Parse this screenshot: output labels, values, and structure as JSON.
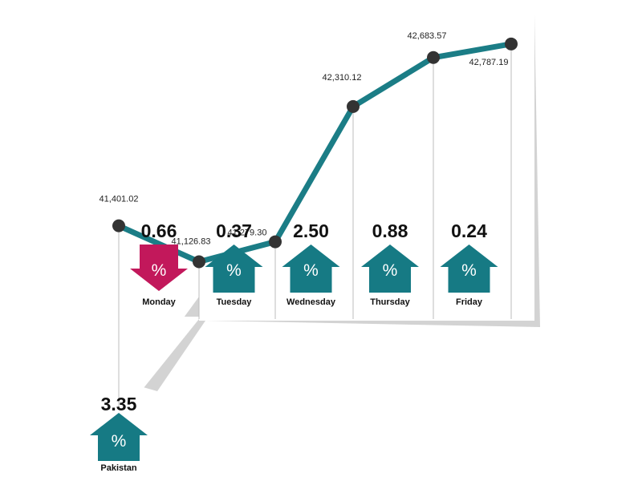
{
  "colors": {
    "line": "#1b7d86",
    "up": "#167a84",
    "down": "#c2185b",
    "point": "#333333",
    "panel_shadow": "#cfcfcf",
    "divider": "#bdbdbd"
  },
  "chart_data": {
    "type": "line",
    "title": "",
    "xlabel": "",
    "ylabel": "",
    "categories": [
      "Monday",
      "Tuesday",
      "Wednesday",
      "Thursday",
      "Friday"
    ],
    "ylim": [
      40800,
      43000
    ],
    "points": [
      {
        "label": "41,401.02",
        "value": 41401.02
      },
      {
        "label": "41,126.83",
        "value": 41126.83
      },
      {
        "label": "41,279.30",
        "value": 41279.3
      },
      {
        "label": "42,310.12",
        "value": 42310.12
      },
      {
        "label": "42,683.57",
        "value": 42683.57
      },
      {
        "label": "42,787.19",
        "value": 42787.19
      }
    ],
    "daily_changes": [
      {
        "day": "Monday",
        "percent": "0.66",
        "direction": "down",
        "icon": "percent-arrow-down-icon"
      },
      {
        "day": "Tuesday",
        "percent": "0.37",
        "direction": "up",
        "icon": "percent-arrow-up-icon"
      },
      {
        "day": "Wednesday",
        "percent": "2.50",
        "direction": "up",
        "icon": "percent-arrow-up-icon"
      },
      {
        "day": "Thursday",
        "percent": "0.88",
        "direction": "up",
        "icon": "percent-arrow-up-icon"
      },
      {
        "day": "Friday",
        "percent": "0.24",
        "direction": "up",
        "icon": "percent-arrow-up-icon"
      }
    ],
    "weekly": {
      "label": "Pakistan",
      "percent": "3.35",
      "direction": "up",
      "icon": "percent-arrow-up-icon"
    },
    "percent_symbol": "%"
  }
}
